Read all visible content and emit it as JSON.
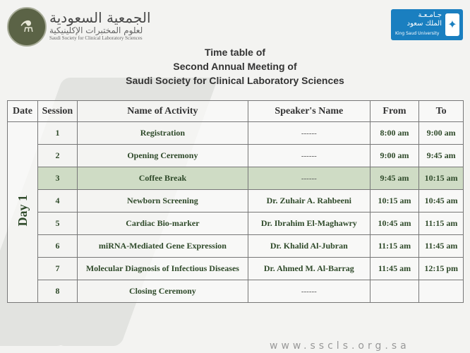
{
  "header": {
    "org_arabic_1": "الجمعية السعودية",
    "org_arabic_2": "لعلوم المختبرات الإكلينيكية",
    "org_english": "Saudi Society for Clinical Laboratory Sciences",
    "ksu_arabic_1": "جـامـعـة",
    "ksu_arabic_2": "الملك سعود",
    "ksu_english": "King Saud University"
  },
  "title": {
    "line1": "Time table of",
    "line2": "Second Annual Meeting of",
    "line3": "Saudi Society for Clinical Laboratory Sciences"
  },
  "table": {
    "headers": [
      "Date",
      "Session",
      "Name of Activity",
      "Speaker's Name",
      "From",
      "To"
    ],
    "day": "Day 1",
    "rows": [
      {
        "session": "1",
        "activity": "Registration",
        "speaker": "------",
        "from": "8:00 am",
        "to": "9:00 am"
      },
      {
        "session": "2",
        "activity": "Opening Ceremony",
        "speaker": "------",
        "from": "9:00 am",
        "to": "9:45 am"
      },
      {
        "session": "3",
        "activity": "Coffee Break",
        "speaker": "------",
        "from": "9:45 am",
        "to": "10:15 am"
      },
      {
        "session": "4",
        "activity": "Newborn Screening",
        "speaker": "Dr. Zuhair A. Rahbeeni",
        "from": "10:15 am",
        "to": "10:45 am"
      },
      {
        "session": "5",
        "activity": "Cardiac Bio-marker",
        "speaker": "Dr. Ibrahim El-Maghawry",
        "from": "10:45 am",
        "to": "11:15 am"
      },
      {
        "session": "6",
        "activity": "miRNA-Mediated Gene Expression",
        "speaker": "Dr. Khalid Al-Jubran",
        "from": "11:15 am",
        "to": "11:45  am"
      },
      {
        "session": "7",
        "activity": "Molecular Diagnosis of Infectious Diseases",
        "speaker": "Dr. Ahmed M. Al-Barrag",
        "from": "11:45 am",
        "to": "12:15 pm"
      },
      {
        "session": "8",
        "activity": "Closing Ceremony",
        "speaker": "------",
        "from": "",
        "to": ""
      }
    ]
  },
  "footer": {
    "website": "www.sscls.org.sa"
  },
  "colors": {
    "highlight_row": "#cfdcc5",
    "text_green": "#2f4a2a",
    "ksu_blue": "#1a7fc0"
  }
}
